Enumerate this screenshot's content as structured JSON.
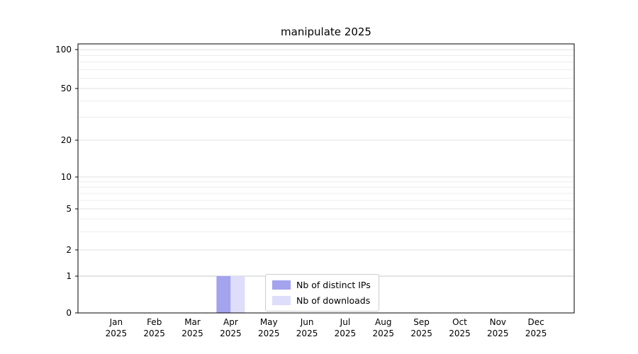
{
  "chart_data": {
    "type": "bar",
    "title": "manipulate 2025",
    "categories": [
      "Jan",
      "Feb",
      "Mar",
      "Apr",
      "May",
      "Jun",
      "Jul",
      "Aug",
      "Sep",
      "Oct",
      "Nov",
      "Dec"
    ],
    "year_label": "2025",
    "series": [
      {
        "name": "Nb of distinct IPs",
        "color": "#a3a3ee",
        "values": [
          0,
          0,
          0,
          1,
          0,
          0,
          0,
          0,
          0,
          0,
          0,
          0
        ]
      },
      {
        "name": "Nb of downloads",
        "color": "#dedefb",
        "values": [
          0,
          0,
          0,
          1,
          0,
          0,
          0,
          0,
          0,
          0,
          0,
          0
        ]
      }
    ],
    "yscale": "symlog",
    "ylim": [
      0,
      100
    ],
    "yticks": [
      0,
      1,
      2,
      5,
      10,
      20,
      50,
      100
    ],
    "minor_yticks": [
      3,
      4,
      6,
      7,
      8,
      9,
      30,
      40,
      60,
      70,
      80,
      90
    ],
    "grid": "on",
    "legend_position": "lower center"
  }
}
